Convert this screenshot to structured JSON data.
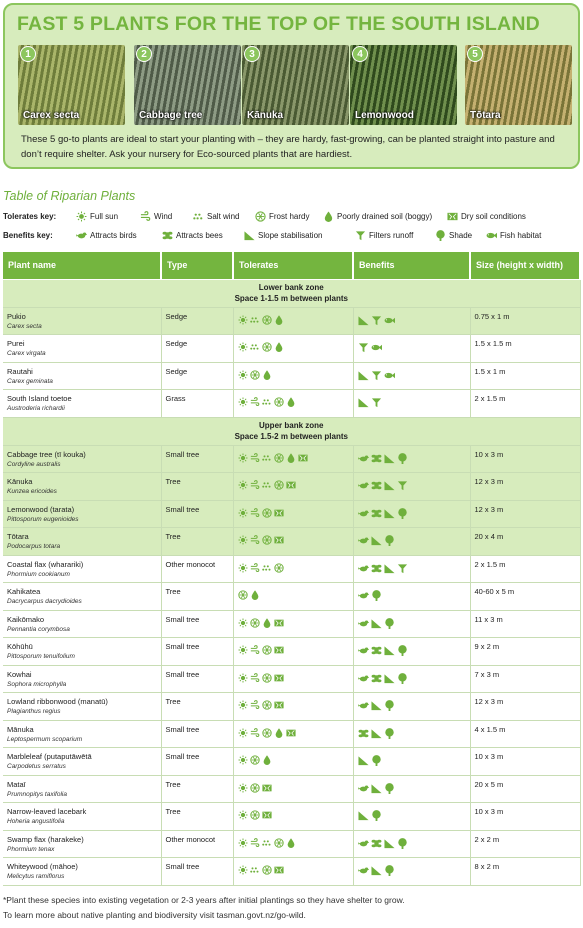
{
  "header": {
    "title": "FAST 5 PLANTS FOR THE TOP OF THE SOUTH ISLAND",
    "photos": [
      {
        "num": "1",
        "label": "Carex secta",
        "colors": [
          "#a9b56a",
          "#6e7d3b"
        ]
      },
      {
        "num": "2",
        "label": "Cabbage tree",
        "colors": [
          "#8d9b84",
          "#4f5b48"
        ]
      },
      {
        "num": "3",
        "label": "Kānuka",
        "colors": [
          "#89976a",
          "#4a5a33"
        ]
      },
      {
        "num": "4",
        "label": "Lemonwood",
        "colors": [
          "#6f8f4d",
          "#2f4a1d"
        ]
      },
      {
        "num": "5",
        "label": "Tōtara",
        "colors": [
          "#c4b070",
          "#7a7438"
        ]
      }
    ],
    "description": "These 5 go-to plants are ideal to start your planting with – they are hardy, fast-growing, can be planted straight into pasture and don’t require shelter. Ask your nursery for Eco-sourced plants that are hardiest."
  },
  "table_title": "Table of Riparian Plants",
  "tolerates_key": {
    "label": "Tolerates key:",
    "items": [
      {
        "icon": "sun-icon",
        "label": "Full sun"
      },
      {
        "icon": "wind-icon",
        "label": "Wind"
      },
      {
        "icon": "salt-wind-icon",
        "label": "Salt wind"
      },
      {
        "icon": "frost-icon",
        "label": "Frost hardy"
      },
      {
        "icon": "boggy-icon",
        "label": "Poorly drained soil (boggy)"
      },
      {
        "icon": "dry-soil-icon",
        "label": "Dry soil conditions"
      }
    ]
  },
  "benefits_key": {
    "label": "Benefits key:",
    "items": [
      {
        "icon": "bird-icon",
        "label": "Attracts birds"
      },
      {
        "icon": "bee-icon",
        "label": "Attracts bees"
      },
      {
        "icon": "slope-icon",
        "label": "Slope stabilisation"
      },
      {
        "icon": "filter-icon",
        "label": "Filters runoff"
      },
      {
        "icon": "shade-icon",
        "label": "Shade"
      },
      {
        "icon": "fish-icon",
        "label": "Fish habitat"
      }
    ]
  },
  "columns": [
    "Plant name",
    "Type",
    "Tolerates",
    "Benefits",
    "Size (height x width)"
  ],
  "zones": [
    {
      "title": "Lower bank zone",
      "subtitle": "Space 1-1.5 m between plants",
      "plants": [
        {
          "name": "Pukio",
          "latin": "Carex secta",
          "type": "Sedge",
          "tolerates": [
            "sun",
            "salt",
            "frost",
            "bog"
          ],
          "benefits": [
            "slope",
            "filter",
            "fish"
          ],
          "size": "0.75 x 1 m",
          "hl": true
        },
        {
          "name": "Purei",
          "latin": "Carex virgata",
          "type": "Sedge",
          "tolerates": [
            "sun",
            "salt",
            "frost",
            "bog"
          ],
          "benefits": [
            "filter",
            "fish"
          ],
          "size": "1.5 x 1.5 m",
          "hl": false
        },
        {
          "name": "Rautahi",
          "latin": "Carex geminata",
          "type": "Sedge",
          "tolerates": [
            "sun",
            "frost",
            "bog"
          ],
          "benefits": [
            "slope",
            "filter",
            "fish"
          ],
          "size": "1.5 x 1 m",
          "hl": false
        },
        {
          "name": "South Island toetoe",
          "latin": "Austroderia richardii",
          "type": "Grass",
          "tolerates": [
            "sun",
            "wind",
            "salt",
            "frost",
            "bog"
          ],
          "benefits": [
            "slope",
            "filter"
          ],
          "size": "2 x 1.5 m",
          "hl": false
        }
      ]
    },
    {
      "title": "Upper bank zone",
      "subtitle": "Space 1.5-2 m between plants",
      "plants": [
        {
          "name": "Cabbage tree (tī kouka)",
          "latin": "Cordyline australis",
          "type": "Small tree",
          "tolerates": [
            "sun",
            "wind",
            "salt",
            "frost",
            "bog",
            "dry"
          ],
          "benefits": [
            "bird",
            "bee",
            "slope",
            "shade"
          ],
          "size": "10 x 3 m",
          "hl": true
        },
        {
          "name": "Kānuka",
          "latin": "Kunzea ericoides",
          "type": "Tree",
          "tolerates": [
            "sun",
            "wind",
            "salt",
            "frost",
            "dry"
          ],
          "benefits": [
            "bird",
            "bee",
            "slope",
            "filter"
          ],
          "size": "12 x 3 m",
          "hl": true
        },
        {
          "name": "Lemonwood (tarata)",
          "latin": "Pittosporum eugenioides",
          "type": "Small tree",
          "tolerates": [
            "sun",
            "wind",
            "frost",
            "dry"
          ],
          "benefits": [
            "bird",
            "bee",
            "slope",
            "shade"
          ],
          "size": "12 x 3 m",
          "hl": true
        },
        {
          "name": "Tōtara",
          "latin": "Podocarpus totara",
          "type": "Tree",
          "tolerates": [
            "sun",
            "wind",
            "frost",
            "dry"
          ],
          "benefits": [
            "bird",
            "slope",
            "shade"
          ],
          "size": "20 x 4 m",
          "hl": true
        },
        {
          "name": "Coastal flax (wharariki)",
          "latin": "Phormium cookianum",
          "type": "Other monocot",
          "tolerates": [
            "sun",
            "wind",
            "salt",
            "frost"
          ],
          "benefits": [
            "bird",
            "bee",
            "slope",
            "filter"
          ],
          "size": "2 x 1.5 m",
          "hl": false
        },
        {
          "name": "Kahikatea",
          "latin": "Dacrycarpus dacrydioides",
          "type": "Tree",
          "tolerates": [
            "frost",
            "bog"
          ],
          "benefits": [
            "bird",
            "shade"
          ],
          "size": "40-60 x 5 m",
          "hl": false
        },
        {
          "name": "Kaikōmako",
          "latin": "Pennantia corymbosa",
          "type": "Small tree",
          "tolerates": [
            "sun",
            "frost",
            "bog",
            "dry"
          ],
          "benefits": [
            "bird",
            "slope",
            "shade"
          ],
          "size": "11 x 3 m",
          "hl": false
        },
        {
          "name": "Kōhūhū",
          "latin": "Pittosporum tenuifolium",
          "type": "Small tree",
          "tolerates": [
            "sun",
            "wind",
            "frost",
            "dry"
          ],
          "benefits": [
            "bird",
            "bee",
            "slope",
            "shade"
          ],
          "size": "9 x 2 m",
          "hl": false
        },
        {
          "name": "Kowhai",
          "latin": "Sophora microphylla",
          "type": "Small tree",
          "tolerates": [
            "sun",
            "wind",
            "frost",
            "dry"
          ],
          "benefits": [
            "bird",
            "bee",
            "slope",
            "shade"
          ],
          "size": "7 x 3 m",
          "hl": false
        },
        {
          "name": "Lowland ribbonwood (manatū)",
          "latin": "Plagianthus regius",
          "type": "Tree",
          "tolerates": [
            "sun",
            "wind",
            "frost",
            "dry"
          ],
          "benefits": [
            "bird",
            "slope",
            "shade"
          ],
          "size": "12 x 3 m",
          "hl": false
        },
        {
          "name": "Mānuka",
          "latin": "Leptospermum scoparium",
          "type": "Small tree",
          "tolerates": [
            "sun",
            "wind",
            "frost",
            "bog",
            "dry"
          ],
          "benefits": [
            "bee",
            "slope",
            "shade"
          ],
          "size": "4 x 1.5 m",
          "hl": false
        },
        {
          "name": "Marbleleaf (putaputāwētā",
          "latin": "Carpodetus serratus",
          "type": "Small tree",
          "tolerates": [
            "sun",
            "frost",
            "bog"
          ],
          "benefits": [
            "slope",
            "shade"
          ],
          "size": "10 x 3 m",
          "hl": false
        },
        {
          "name": "Mataī",
          "latin": "Prumnopitys taxifolia",
          "type": "Tree",
          "tolerates": [
            "sun",
            "frost",
            "dry"
          ],
          "benefits": [
            "bird",
            "slope",
            "shade"
          ],
          "size": "20 x 5 m",
          "hl": false
        },
        {
          "name": "Narrow-leaved lacebark",
          "latin": "Hoheria angustifolia",
          "type": "Tree",
          "tolerates": [
            "sun",
            "frost",
            "dry"
          ],
          "benefits": [
            "slope",
            "shade"
          ],
          "size": "10 x 3 m",
          "hl": false
        },
        {
          "name": "Swamp flax (harakeke)",
          "latin": "Phormium tenax",
          "type": "Other monocot",
          "tolerates": [
            "sun",
            "wind",
            "salt",
            "frost",
            "bog"
          ],
          "benefits": [
            "bird",
            "bee",
            "slope",
            "shade"
          ],
          "size": "2 x 2 m",
          "hl": false
        },
        {
          "name": "Whiteywood (māhoe)",
          "latin": "Melicytus ramiflorus",
          "type": "Small tree",
          "tolerates": [
            "sun",
            "salt",
            "frost",
            "dry"
          ],
          "benefits": [
            "bird",
            "slope",
            "shade"
          ],
          "size": "8 x 2 m",
          "hl": false
        }
      ]
    }
  ],
  "footnotes": [
    "*Plant these species into existing vegetation or 2-3 years after initial plantings so they have shelter to grow.",
    "To learn more about native planting and biodiversity visit tasman.govt.nz/go-wild."
  ],
  "colors": {
    "accent": "#74b53f",
    "light": "#d7ecbd",
    "icon": "#6fb03c"
  }
}
